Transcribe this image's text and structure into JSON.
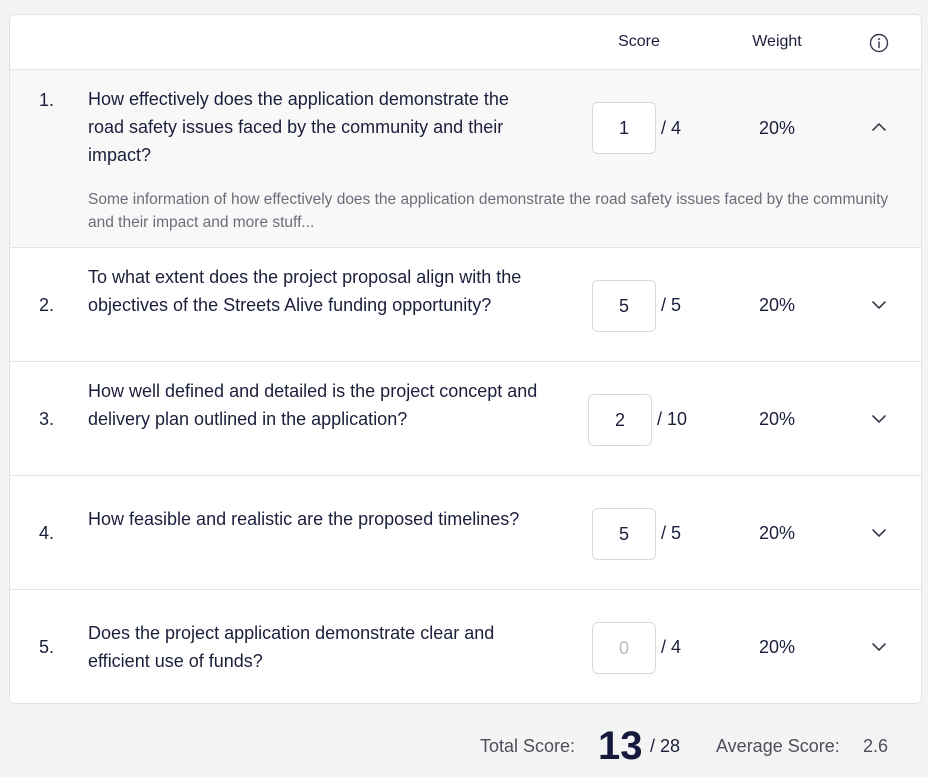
{
  "header": {
    "score_label": "Score",
    "weight_label": "Weight",
    "info_icon": "info-circle-icon"
  },
  "criteria": [
    {
      "number": "1.",
      "question": "How effectively does the application demonstrate the road safety issues faced by the community and their impact?",
      "score": "1",
      "max": "/ 4",
      "weight": "20%",
      "expanded": true,
      "chevron_icon": "chevron-up-icon",
      "description": "Some information of how effectively does the application demonstrate the road safety issues faced by the community and their impact and more stuff..."
    },
    {
      "number": "2.",
      "question": "To what extent does the project proposal align with the objectives of the Streets Alive funding opportunity?",
      "score": "5",
      "max": "/ 5",
      "weight": "20%",
      "expanded": false,
      "chevron_icon": "chevron-down-icon"
    },
    {
      "number": "3.",
      "question": "How well defined and detailed is the project concept and delivery plan outlined in the application?",
      "score": "2",
      "max": "/ 10",
      "weight": "20%",
      "expanded": false,
      "chevron_icon": "chevron-down-icon"
    },
    {
      "number": "4.",
      "question": "How feasible and realistic are the proposed timelines?",
      "score": "5",
      "max": "/ 5",
      "weight": "20%",
      "expanded": false,
      "chevron_icon": "chevron-down-icon"
    },
    {
      "number": "5.",
      "question": "Does the project application demonstrate clear and efficient use of funds?",
      "score_placeholder": "0",
      "max": "/ 4",
      "weight": "20%",
      "expanded": false,
      "chevron_icon": "chevron-down-icon"
    }
  ],
  "footer": {
    "total_label": "Total Score:",
    "total_value": "13",
    "total_max": "/ 28",
    "average_label": "Average Score:",
    "average_value": "2.6"
  },
  "colors": {
    "text": "#1b1f3b",
    "muted": "#6a6d78",
    "border": "#e4e4e8",
    "expanded_bg": "#f8f8f9",
    "page_bg": "#f4f4f4"
  }
}
